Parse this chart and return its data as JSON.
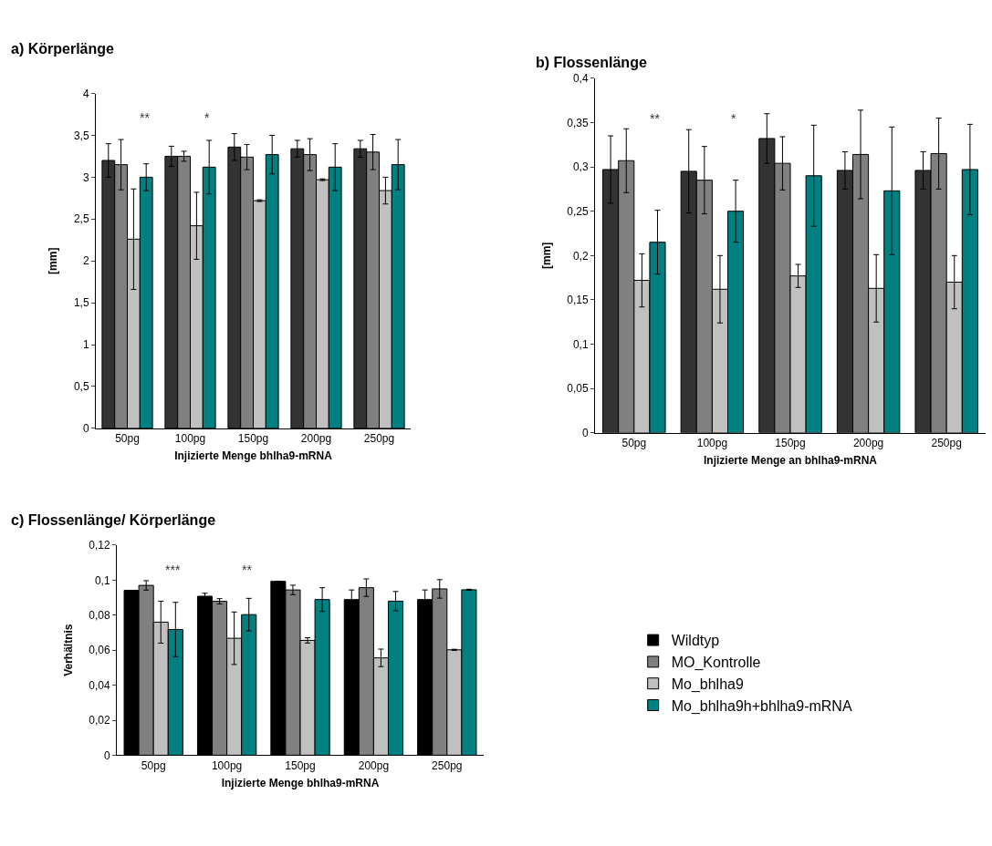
{
  "chart_data": [
    {
      "type": "bar",
      "title": "a) Körperlänge",
      "xlabel": "Injizierte Menge bhlha9-mRNA",
      "ylabel": "[mm]",
      "categories": [
        "50pg",
        "100pg",
        "150pg",
        "200pg",
        "250pg"
      ],
      "ylim": [
        0,
        4
      ],
      "yticks": [
        0,
        {
          "value": 0.5,
          "label": "0,5"
        },
        1,
        {
          "value": 1.5,
          "label": "1,5"
        },
        2,
        {
          "value": 2.5,
          "label": "2,5"
        },
        3,
        {
          "value": 3.5,
          "label": "3,5"
        },
        4
      ],
      "grid": false,
      "legend": false,
      "series": [
        {
          "color": "#333333",
          "values": [
            3.2,
            3.25,
            3.36,
            3.34,
            3.34
          ],
          "errors": [
            0.2,
            0.12,
            0.16,
            0.1,
            0.1
          ]
        },
        {
          "color": "#808080",
          "values": [
            3.15,
            3.25,
            3.24,
            3.27,
            3.3
          ],
          "errors": [
            0.3,
            0.06,
            0.15,
            0.19,
            0.21
          ]
        },
        {
          "color": "#c0c0c0",
          "values": [
            2.26,
            2.42,
            2.72,
            2.97,
            2.84
          ],
          "errors": [
            0.6,
            0.4,
            0.01,
            0.01,
            0.16
          ]
        },
        {
          "color": "#008080",
          "values": [
            3.0,
            3.12,
            3.27,
            3.12,
            3.15
          ],
          "errors": [
            0.16,
            0.32,
            0.23,
            0.28,
            0.3
          ]
        }
      ],
      "annotations": [
        "**",
        "*"
      ]
    },
    {
      "type": "bar",
      "title": "b) Flossenlänge",
      "xlabel": "Injizierte Menge an bhlha9-mRNA",
      "ylabel": "[mm]",
      "categories": [
        "50pg",
        "100pg",
        "150pg",
        "200pg",
        "250pg"
      ],
      "ylim": [
        0,
        0.4
      ],
      "yticks": [
        0,
        {
          "value": 0.05,
          "label": "0,05"
        },
        {
          "value": 0.1,
          "label": "0,1"
        },
        {
          "value": 0.15,
          "label": "0,15"
        },
        {
          "value": 0.2,
          "label": "0,2"
        },
        {
          "value": 0.25,
          "label": "0,25"
        },
        {
          "value": 0.3,
          "label": "0,3"
        },
        {
          "value": 0.35,
          "label": "0,35"
        },
        {
          "value": 0.4,
          "label": "0,4"
        }
      ],
      "grid": false,
      "legend": false,
      "series": [
        {
          "color": "#333333",
          "values": [
            0.297,
            0.295,
            0.332,
            0.296,
            0.296
          ],
          "errors": [
            0.038,
            0.047,
            0.028,
            0.021,
            0.021
          ]
        },
        {
          "color": "#808080",
          "values": [
            0.307,
            0.285,
            0.304,
            0.314,
            0.315
          ],
          "errors": [
            0.036,
            0.038,
            0.03,
            0.05,
            0.04
          ]
        },
        {
          "color": "#c0c0c0",
          "values": [
            0.172,
            0.162,
            0.177,
            0.163,
            0.17
          ],
          "errors": [
            0.03,
            0.038,
            0.013,
            0.038,
            0.03
          ]
        },
        {
          "color": "#008080",
          "values": [
            0.215,
            0.25,
            0.29,
            0.273,
            0.297
          ],
          "errors": [
            0.036,
            0.035,
            0.057,
            0.072,
            0.051
          ]
        }
      ],
      "annotations": [
        "**",
        "*"
      ]
    },
    {
      "type": "bar",
      "title": "c) Flossenlänge/ Körperlänge",
      "xlabel": "Injizierte Menge bhlha9-mRNA",
      "ylabel": "Verhältnis",
      "categories": [
        "50pg",
        "100pg",
        "150pg",
        "200pg",
        "250pg"
      ],
      "ylim": [
        0,
        0.12
      ],
      "yticks": [
        0,
        {
          "value": 0.02,
          "label": "0,02"
        },
        {
          "value": 0.04,
          "label": "0,04"
        },
        {
          "value": 0.06,
          "label": "0,06"
        },
        {
          "value": 0.08,
          "label": "0,08"
        },
        {
          "value": 0.1,
          "label": "0,1"
        },
        {
          "value": 0.12,
          "label": "0,12"
        }
      ],
      "grid": false,
      "legend": "right",
      "series": [
        {
          "name": "Wildtyp",
          "color": "#000000",
          "values": [
            0.0942,
            0.0908,
            0.0993,
            0.0889,
            0.0889
          ],
          "errors": [
            null,
            0.0017,
            null,
            0.0055,
            0.0055
          ]
        },
        {
          "name": "MO_Kontrolle",
          "color": "#808080",
          "values": [
            0.097,
            0.0879,
            0.0944,
            0.0957,
            0.095
          ],
          "errors": [
            0.0027,
            0.0015,
            0.0027,
            0.005,
            0.0053
          ]
        },
        {
          "name": "Mo_bhlha9",
          "color": "#c0c0c0",
          "values": [
            0.076,
            0.0668,
            0.0656,
            0.0556,
            0.0602
          ],
          "errors": [
            0.012,
            0.015,
            0.0015,
            0.005,
            0.0003
          ]
        },
        {
          "name": "Mo_bhlha9h+bhlha9-mRNA",
          "color": "#008080",
          "values": [
            0.0718,
            0.0803,
            0.0889,
            0.088,
            0.0945
          ],
          "errors": [
            0.0155,
            0.0093,
            0.0068,
            0.0055,
            0.0003
          ]
        }
      ],
      "annotations": [
        "***",
        "**"
      ]
    }
  ]
}
